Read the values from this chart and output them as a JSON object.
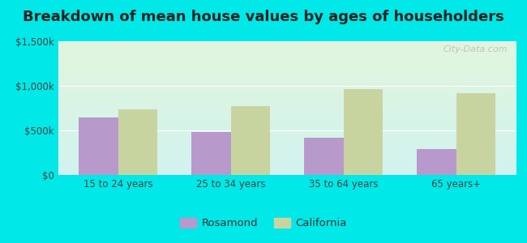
{
  "title": "Breakdown of mean house values by ages of householders",
  "categories": [
    "15 to 24 years",
    "25 to 34 years",
    "35 to 64 years",
    "65 years+"
  ],
  "rosamond_values": [
    650000,
    480000,
    420000,
    295000
  ],
  "california_values": [
    740000,
    775000,
    960000,
    920000
  ],
  "rosamond_color": "#b899cc",
  "california_color": "#c8d4a0",
  "ylim": [
    0,
    1500000
  ],
  "yticks": [
    0,
    500000,
    1000000,
    1500000
  ],
  "ytick_labels": [
    "$0",
    "$500k",
    "$1,000k",
    "$1,500k"
  ],
  "legend_labels": [
    "Rosamond",
    "California"
  ],
  "background_outer": "#00e8e8",
  "watermark": "City-Data.com",
  "title_fontsize": 13,
  "bar_width": 0.35
}
